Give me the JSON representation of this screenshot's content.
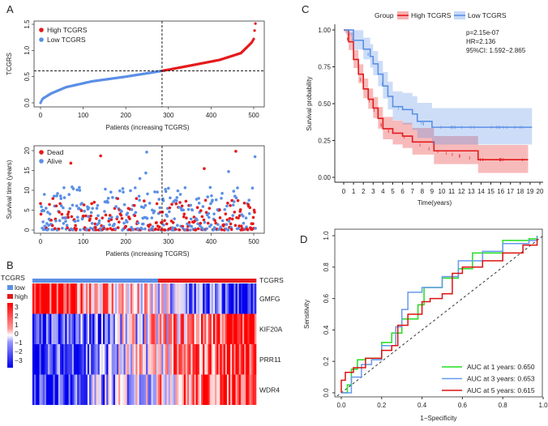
{
  "colors": {
    "high": "#e41a1c",
    "low": "#5b8fe6",
    "roc1": "#22dd22",
    "roc3": "#6699ee",
    "roc5": "#dd1111",
    "heat_high": "#ff0000",
    "heat_low": "#0000ee"
  },
  "chart_data": [
    {
      "panel": "A",
      "type": "scatter",
      "ylabel": "TCGRS",
      "xlabel": "Patients (increasing TCGRS)",
      "xticks": [
        0,
        100,
        200,
        300,
        400,
        500
      ],
      "yticks": [
        "0.0",
        "0.5",
        "1.0",
        "1.5"
      ],
      "xlim": [
        -5,
        510
      ],
      "ylim": [
        -0.05,
        1.65
      ],
      "cutoff_patient": 285,
      "cutoff_value": 0.61,
      "n_patients": 505,
      "legend": [
        "High TCGRS",
        "Low TCGRS"
      ],
      "legend_position": "top-left",
      "curve_keypoints": [
        [
          0,
          0.0
        ],
        [
          5,
          0.08
        ],
        [
          25,
          0.18
        ],
        [
          60,
          0.3
        ],
        [
          120,
          0.41
        ],
        [
          200,
          0.5
        ],
        [
          285,
          0.61
        ],
        [
          350,
          0.71
        ],
        [
          420,
          0.82
        ],
        [
          470,
          0.95
        ],
        [
          495,
          1.15
        ],
        [
          500,
          1.22
        ],
        [
          502,
          1.38
        ],
        [
          505,
          1.58
        ]
      ]
    },
    {
      "panel": "A2",
      "type": "scatter",
      "ylabel": "Survival time (years)",
      "xlabel": "Patients (increasing TCGRS)",
      "xticks": [
        0,
        100,
        200,
        300,
        400,
        500
      ],
      "yticks": [
        "0",
        "5",
        "10",
        "15",
        "20"
      ],
      "xlim": [
        -5,
        510
      ],
      "ylim": [
        0,
        20
      ],
      "cutoff_patient": 285,
      "legend": [
        "Dead",
        "Alive"
      ],
      "legend_position": "top-left"
    },
    {
      "panel": "B",
      "type": "heatmap",
      "annotation_label": "TCGRS",
      "annotation_levels": [
        "low",
        "high"
      ],
      "colorbar_ticks": [
        "3",
        "2",
        "1",
        "0",
        "−1",
        "−2",
        "−3"
      ],
      "columns": 130,
      "low_fraction": 0.565,
      "rows": [
        {
          "gene": "GMFG",
          "trend": -1
        },
        {
          "gene": "KIF20A",
          "trend": 1
        },
        {
          "gene": "PRR11",
          "trend": 1
        },
        {
          "gene": "WDR4",
          "trend": 1
        }
      ]
    },
    {
      "panel": "C",
      "type": "line",
      "ylabel": "Survival probability",
      "xlabel": "Time(years)",
      "xticks": [
        "0",
        "1",
        "2",
        "3",
        "4",
        "5",
        "6",
        "7",
        "8",
        "9",
        "10",
        "11",
        "12",
        "13",
        "14",
        "15",
        "16",
        "17",
        "18",
        "19",
        "20"
      ],
      "yticks": [
        "0.00",
        "0.25",
        "0.50",
        "0.75",
        "1.00"
      ],
      "xlim": [
        0,
        20
      ],
      "ylim": [
        0,
        1
      ],
      "legend_title": "Group",
      "legend_position": "top",
      "annotations": [
        "p=2.15e-07",
        "HR=2.136",
        "95%CI: 1.592−2.865"
      ],
      "series": [
        {
          "name": "High TCGRS",
          "points": [
            [
              0,
              1
            ],
            [
              0.5,
              0.92
            ],
            [
              1,
              0.8
            ],
            [
              1.5,
              0.7
            ],
            [
              2,
              0.6
            ],
            [
              2.5,
              0.53
            ],
            [
              3,
              0.47
            ],
            [
              3.5,
              0.4
            ],
            [
              4,
              0.33
            ],
            [
              5,
              0.3
            ],
            [
              6,
              0.28
            ],
            [
              7,
              0.24
            ],
            [
              9.2,
              0.18
            ],
            [
              13.7,
              0.12
            ],
            [
              18.8,
              0.12
            ]
          ],
          "ci": [
            0.06,
            0.1
          ]
        },
        {
          "name": "Low TCGRS",
          "points": [
            [
              0,
              1
            ],
            [
              1,
              0.93
            ],
            [
              2,
              0.87
            ],
            [
              2.7,
              0.82
            ],
            [
              3,
              0.77
            ],
            [
              3.5,
              0.7
            ],
            [
              4,
              0.62
            ],
            [
              4.5,
              0.55
            ],
            [
              5,
              0.48
            ],
            [
              6,
              0.46
            ],
            [
              7,
              0.43
            ],
            [
              7.5,
              0.38
            ],
            [
              9,
              0.34
            ],
            [
              19.2,
              0.34
            ]
          ],
          "ci": [
            0.06,
            0.13
          ]
        }
      ]
    },
    {
      "panel": "D",
      "type": "line",
      "ylabel": "Sensitivity",
      "xlabel": "1−Specificity",
      "xticks": [
        "0.0",
        "0.2",
        "0.4",
        "0.6",
        "0.8",
        "1.0"
      ],
      "yticks": [
        "0.0",
        "0.2",
        "0.4",
        "0.6",
        "0.8",
        "1.0"
      ],
      "xlim": [
        0,
        1
      ],
      "ylim": [
        0,
        1
      ],
      "legend_position": "bottom-right",
      "series": [
        {
          "name": "AUC at 1 years: 0.650",
          "points": [
            [
              0,
              0
            ],
            [
              0.03,
              0.05
            ],
            [
              0.05,
              0.15
            ],
            [
              0.08,
              0.21
            ],
            [
              0.12,
              0.22
            ],
            [
              0.2,
              0.32
            ],
            [
              0.25,
              0.38
            ],
            [
              0.3,
              0.47
            ],
            [
              0.38,
              0.56
            ],
            [
              0.41,
              0.67
            ],
            [
              0.5,
              0.73
            ],
            [
              0.58,
              0.79
            ],
            [
              0.65,
              0.89
            ],
            [
              0.8,
              0.97
            ],
            [
              0.93,
              0.98
            ],
            [
              0.97,
              1.0
            ]
          ]
        },
        {
          "name": "AUC at 3 years: 0.653",
          "points": [
            [
              0,
              0
            ],
            [
              0.05,
              0.1
            ],
            [
              0.1,
              0.18
            ],
            [
              0.15,
              0.21
            ],
            [
              0.2,
              0.3
            ],
            [
              0.27,
              0.42
            ],
            [
              0.3,
              0.53
            ],
            [
              0.33,
              0.64
            ],
            [
              0.4,
              0.67
            ],
            [
              0.5,
              0.74
            ],
            [
              0.58,
              0.84
            ],
            [
              0.7,
              0.9
            ],
            [
              0.8,
              0.95
            ],
            [
              0.93,
              0.97
            ],
            [
              0.97,
              1.0
            ]
          ]
        },
        {
          "name": "AUC at 5 years: 0.615",
          "points": [
            [
              0,
              0
            ],
            [
              0,
              0.08
            ],
            [
              0.02,
              0.13
            ],
            [
              0.06,
              0.16
            ],
            [
              0.12,
              0.22
            ],
            [
              0.2,
              0.27
            ],
            [
              0.25,
              0.3
            ],
            [
              0.28,
              0.43
            ],
            [
              0.33,
              0.5
            ],
            [
              0.4,
              0.58
            ],
            [
              0.44,
              0.6
            ],
            [
              0.5,
              0.63
            ],
            [
              0.55,
              0.76
            ],
            [
              0.6,
              0.8
            ],
            [
              0.7,
              0.84
            ],
            [
              0.8,
              0.89
            ],
            [
              0.9,
              0.94
            ],
            [
              0.97,
              0.98
            ]
          ]
        }
      ]
    }
  ],
  "panel_labels": [
    "A",
    "B",
    "C",
    "D"
  ]
}
